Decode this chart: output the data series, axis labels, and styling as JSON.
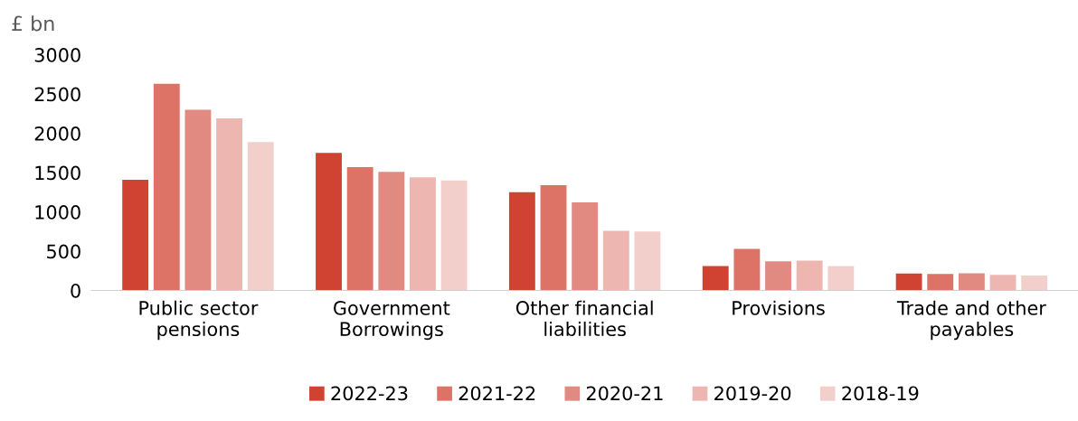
{
  "chart_data": {
    "type": "bar",
    "ylabel": "£ bn",
    "categories": [
      "Public sector pensions",
      "Government Borrowings",
      "Other financial liabilities",
      "Provisions",
      "Trade and other payables"
    ],
    "series": [
      {
        "name": "2022-23",
        "color": "#d04232",
        "values": [
          1410,
          1750,
          1250,
          310,
          215
        ]
      },
      {
        "name": "2021-22",
        "color": "#dd7266",
        "values": [
          2630,
          1570,
          1340,
          530,
          210
        ]
      },
      {
        "name": "2020-21",
        "color": "#e08a81",
        "values": [
          2300,
          1510,
          1120,
          370,
          220
        ]
      },
      {
        "name": "2019-20",
        "color": "#edb6b0",
        "values": [
          2190,
          1440,
          760,
          380,
          200
        ]
      },
      {
        "name": "2018-19",
        "color": "#f2cfcb",
        "values": [
          1890,
          1400,
          750,
          310,
          190
        ]
      }
    ],
    "ylim": [
      0,
      3000
    ],
    "yticks": [
      0,
      500,
      1000,
      1500,
      2000,
      2500,
      3000
    ],
    "grid": false,
    "legend": "bottom"
  }
}
